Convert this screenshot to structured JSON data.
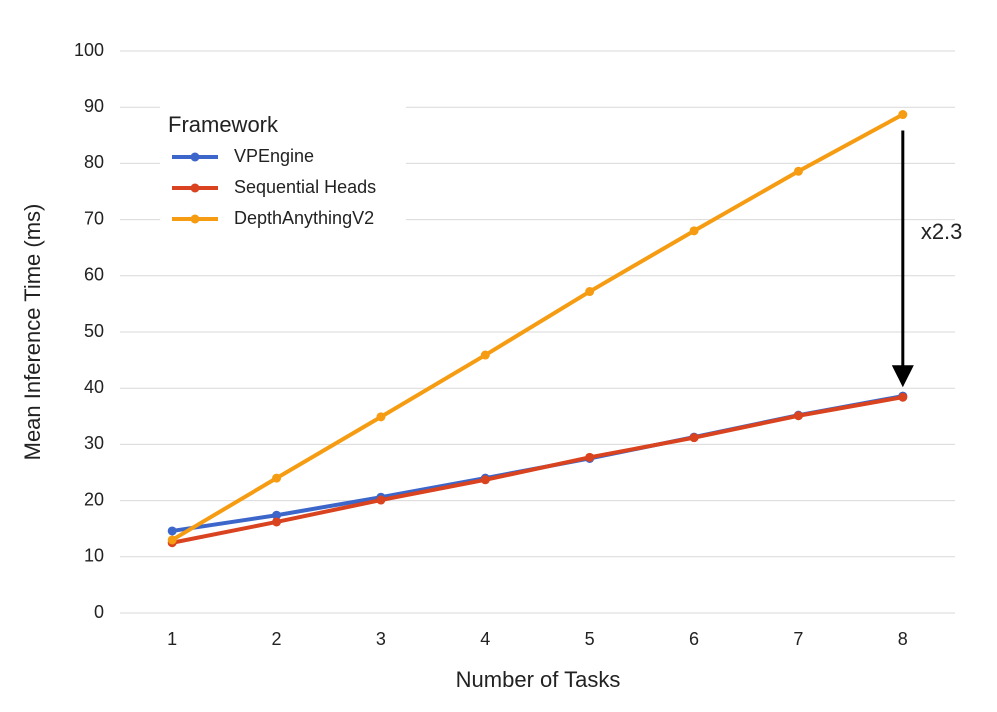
{
  "chart_data": {
    "type": "line",
    "x_label": "Number of Tasks",
    "y_label": "Mean Inference Time (ms)",
    "x": [
      1,
      2,
      3,
      4,
      5,
      6,
      7,
      8
    ],
    "xlim": [
      0.5,
      8.5
    ],
    "xticks": [
      1,
      2,
      3,
      4,
      5,
      6,
      7,
      8
    ],
    "ylim": [
      0,
      100
    ],
    "yticks": [
      0,
      10,
      20,
      30,
      40,
      50,
      60,
      70,
      80,
      90,
      100
    ],
    "grid": true,
    "legend_title": "Framework",
    "legend_position": "upper left",
    "series": [
      {
        "name": "VPEngine",
        "color": "#3c66c9",
        "values": [
          14.6,
          17.4,
          20.6,
          24.0,
          27.5,
          31.3,
          35.2,
          38.6
        ]
      },
      {
        "name": "Sequential Heads",
        "color": "#d9431f",
        "values": [
          12.5,
          16.2,
          20.1,
          23.7,
          27.7,
          31.2,
          35.1,
          38.4
        ]
      },
      {
        "name": "DepthAnythingV2",
        "color": "#f59c12",
        "values": [
          13.0,
          24.0,
          34.9,
          45.9,
          57.2,
          68.0,
          78.6,
          88.7
        ]
      }
    ],
    "annotation": "x2.3"
  }
}
